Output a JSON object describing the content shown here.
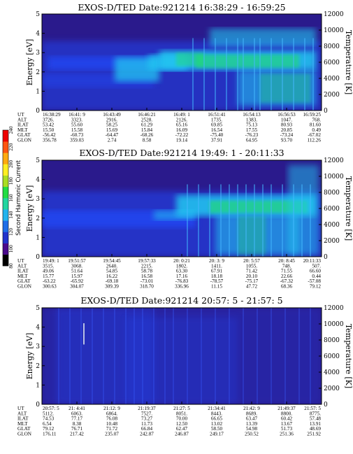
{
  "colors": {
    "background_low": "#2a1a8c",
    "mid_blue": "#2244ee",
    "cyan": "#22c8f0",
    "green": "#22dd66",
    "grid": "#000000"
  },
  "colorbar": {
    "label": "Second Harmonic Current",
    "ticks": [
      "80",
      "100",
      "120",
      "140",
      "160",
      "180",
      "200",
      "220",
      "240"
    ]
  },
  "row_labels": [
    "UT",
    "ALT",
    "ILAT",
    "MLT",
    "GLAT",
    "GLON"
  ],
  "chart_data": [
    {
      "type": "heatmap",
      "title": "EXOS-D/TED   Date:921214   16:38:29 - 16:59:25",
      "ylabel": "Energy [eV]",
      "y2label": "Temperature [K]",
      "ylim": [
        0,
        5
      ],
      "y2lim": [
        0,
        12000
      ],
      "yticks": [
        "0",
        "1",
        "2",
        "3",
        "4",
        "5"
      ],
      "y2ticks": [
        "0",
        "2000",
        "4000",
        "6000",
        "8000",
        "10000",
        "12000"
      ],
      "columns": [
        [
          "16:38:29",
          "3726.",
          "53.42",
          "15.50",
          "-56.42",
          "356.78"
        ],
        [
          "16:41: 9",
          "3323.",
          "55.60",
          "15.58",
          "-60.73",
          "359.03"
        ],
        [
          "16:43:49",
          "2916.",
          "58.25",
          "15.69",
          "-64.47",
          "2.74"
        ],
        [
          "16:46:21",
          "2528.",
          "61.29",
          "15.84",
          "-68.26",
          "8.58"
        ],
        [
          "16:49: 1",
          "2126.",
          "65.16",
          "16.09",
          "-72.22",
          "19.14"
        ],
        [
          "16:51:41",
          "1735.",
          "69.85",
          "16.54",
          "-75.40",
          "37.91"
        ],
        [
          "16:54:13",
          "1383.",
          "75.13",
          "17.55",
          "-76.23",
          "64.95"
        ],
        [
          "16:56:53",
          "1047.",
          "80.93",
          "20.85",
          "-73.24",
          "93.70"
        ],
        [
          "16:59:25",
          "768.",
          "81.60",
          "0.49",
          "-67.02",
          "112.26"
        ]
      ]
    },
    {
      "type": "heatmap",
      "title": "EXOS-D/TED   Date:921214   19:49: 1 - 20:11:33",
      "ylabel": "Energy [eV]",
      "y2label": "Temperature [K]",
      "ylim": [
        0,
        5
      ],
      "y2lim": [
        0,
        12000
      ],
      "yticks": [
        "0",
        "1",
        "2",
        "3",
        "4",
        "5"
      ],
      "y2ticks": [
        "0",
        "2000",
        "4000",
        "6000",
        "8000",
        "10000",
        "12000"
      ],
      "columns": [
        [
          "19:49: 1",
          "3515.",
          "49.06",
          "15.77",
          "-63.22",
          "300.63"
        ],
        [
          "19:51:57",
          "3068.",
          "51.64",
          "15.97",
          "-65.92",
          "304.07"
        ],
        [
          "19:54:45",
          "2640.",
          "54.85",
          "16.22",
          "-69.18",
          "309.39"
        ],
        [
          "19:57:33",
          "2215.",
          "58.78",
          "16.58",
          "-73.01",
          "318.70"
        ],
        [
          "20: 0:21",
          "1802.",
          "63.30",
          "17.16",
          "-76.83",
          "336.96"
        ],
        [
          "20: 3: 9",
          "1411.",
          "67.91",
          "18.18",
          "-78.57",
          "11.15"
        ],
        [
          "20: 5:57",
          "1055.",
          "71.42",
          "20.10",
          "-75.17",
          "47.72"
        ],
        [
          "20: 8:45",
          "748.",
          "71.55",
          "22.66",
          "-67.32",
          "68.36"
        ],
        [
          "20:11:33",
          "507.",
          "66.60",
          "0.44",
          "-57.08",
          "79.12"
        ]
      ]
    },
    {
      "type": "heatmap",
      "title": "EXOS-D/TED   Date:921214   20:57: 5 - 21:57: 5",
      "ylabel": "Energy [eV]",
      "y2label": "Temperature [K]",
      "ylim": [
        0,
        5
      ],
      "y2lim": [
        0,
        12000
      ],
      "yticks": [
        "0",
        "1",
        "2",
        "3",
        "4",
        "5"
      ],
      "y2ticks": [
        "0",
        "2000",
        "4000",
        "6000",
        "8000",
        "10000",
        "12000"
      ],
      "columns": [
        [
          "20:57: 5",
          "5112.",
          "74.53",
          "6.54",
          "79.12",
          "176.11"
        ],
        [
          "21: 4:41",
          "6063.",
          "77.17",
          "8.38",
          "76.71",
          "217.42"
        ],
        [
          "21:12: 9",
          "6864.",
          "76.08",
          "10.48",
          "71.72",
          "235.07"
        ],
        [
          "21:19:37",
          "7527.",
          "73.27",
          "11.73",
          "66.84",
          "242.87"
        ],
        [
          "21:27: 5",
          "8051.",
          "70.00",
          "12.50",
          "62.47",
          "246.87"
        ],
        [
          "21:34:41",
          "8443.",
          "66.65",
          "13.02",
          "58.50",
          "249.17"
        ],
        [
          "21:42: 9",
          "8689.",
          "63.47",
          "13.39",
          "54.98",
          "250.52"
        ],
        [
          "21:49:37",
          "8800.",
          "60.42",
          "13.67",
          "51.73",
          "251.36"
        ],
        [
          "21:57: 5",
          "8775.",
          "57.48",
          "13.91",
          "48.69",
          "251.92"
        ]
      ]
    }
  ]
}
